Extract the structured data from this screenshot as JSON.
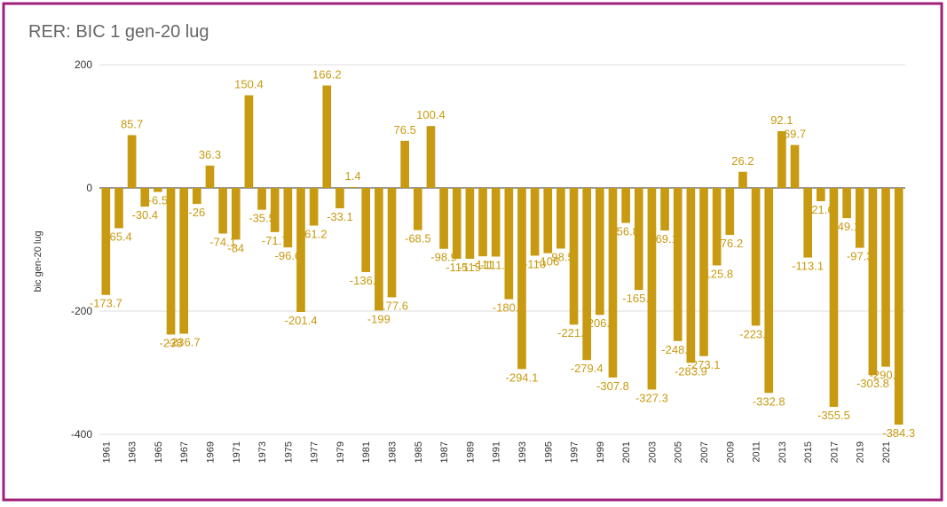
{
  "chart_data": {
    "type": "bar",
    "title": "RER: BIC 1 gen-20 lug",
    "y_label": "bic gen-20 lug",
    "categories": [
      "1961",
      null,
      "1963",
      null,
      "1965",
      null,
      "1967",
      null,
      "1969",
      null,
      "1971",
      null,
      "1973",
      null,
      "1975",
      null,
      "1977",
      null,
      "1979",
      null,
      "1981",
      null,
      "1983",
      null,
      "1985",
      null,
      "1987",
      null,
      "1989",
      null,
      "1991",
      null,
      "1993",
      null,
      "1995",
      null,
      "1997",
      null,
      "1999",
      null,
      "2001",
      null,
      "2003",
      null,
      "2005",
      null,
      "2007",
      null,
      "2009",
      null,
      "2011",
      null,
      "2013",
      null,
      "2015",
      null,
      "2017",
      null,
      "2019",
      null,
      "2021",
      null
    ],
    "values": [
      -173.7,
      -65.4,
      85.7,
      -30.4,
      -6.5,
      -238,
      -236.7,
      -26,
      36.3,
      -74.1,
      -84,
      150.4,
      -35.5,
      -71.7,
      -96.6,
      -201.4,
      -61.2,
      166.2,
      -33.1,
      1.4,
      -136.6,
      -199,
      -177.6,
      76.5,
      -68.5,
      100.4,
      -98.9,
      -115,
      -115,
      -111,
      -111.5,
      -180.7,
      -294.1,
      -110,
      -106,
      -98.5,
      -221.9,
      -279.4,
      -206.1,
      -307.8,
      -56.8,
      -165.7,
      -327.3,
      -69.1,
      -248.6,
      -283.9,
      -273.1,
      -125.8,
      -76.2,
      26.2,
      -223.6,
      -332.8,
      92.1,
      69.7,
      -113.1,
      -21.6,
      -355.5,
      -49.1,
      -97.3,
      -303.8,
      -290.2,
      -384.3
    ],
    "color": "#c89a12",
    "ylim": [
      -400,
      200
    ],
    "yticks": [
      -400,
      -200,
      0,
      200
    ],
    "grid": true
  }
}
